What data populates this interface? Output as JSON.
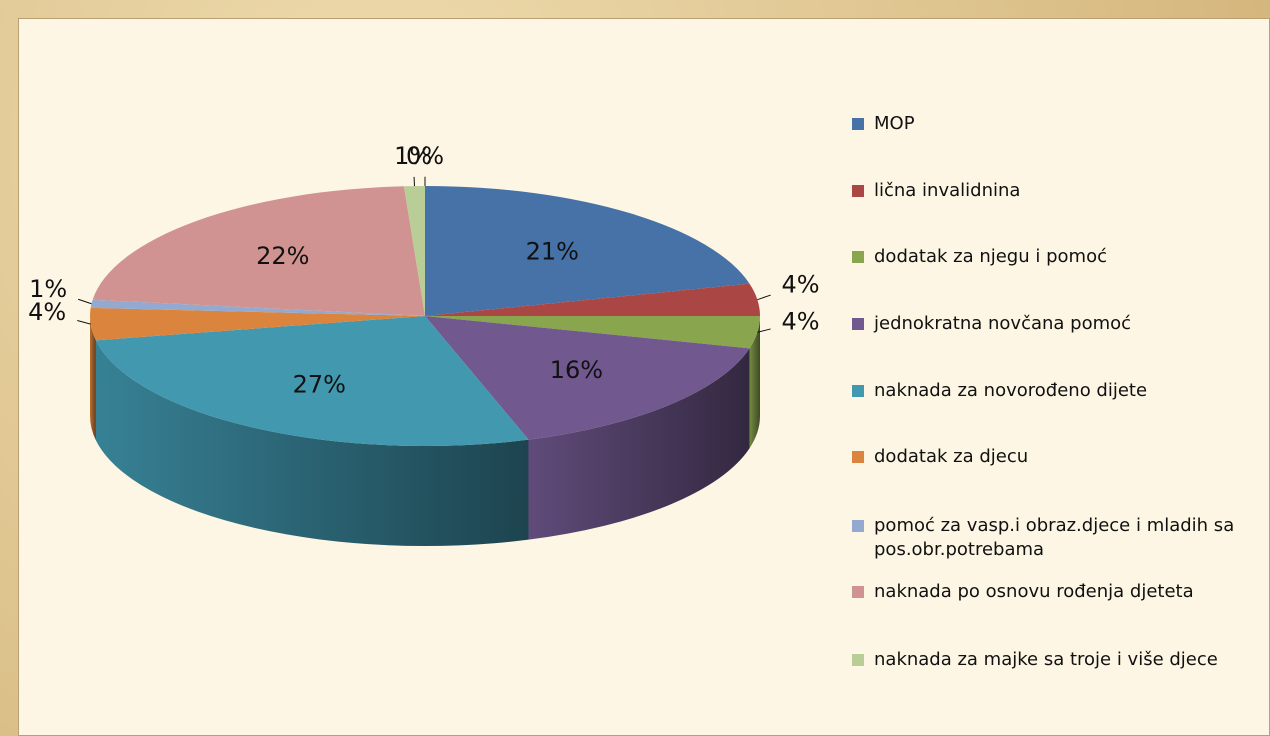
{
  "chart_data": {
    "type": "pie",
    "categories": [
      "MOP",
      "lična invalidnina",
      "dodatak za njegu i pomoć",
      "jednokratna novčana pomoć",
      "naknada za novorođeno dijete",
      "dodatak za djecu",
      "pomoć za vasp.i obraz.djece i mladih sa pos.obr.potrebama",
      "naknada po osnovu rođenja djeteta",
      "naknada za majke sa troje i više djece",
      null
    ],
    "values": [
      21,
      4,
      4,
      16,
      27,
      4,
      1,
      22,
      1,
      0
    ],
    "value_labels": [
      "21%",
      "4%",
      "4%",
      "16%",
      "27%",
      "4%",
      "1%",
      "22%",
      "1%",
      "0%"
    ],
    "colors": [
      "#4672a8",
      "#aa4644",
      "#89a54e",
      "#71588f",
      "#4198af",
      "#db843d",
      "#93a9cf",
      "#d19392",
      "#b9cd96",
      "#a99bbd"
    ],
    "legend": "right"
  }
}
